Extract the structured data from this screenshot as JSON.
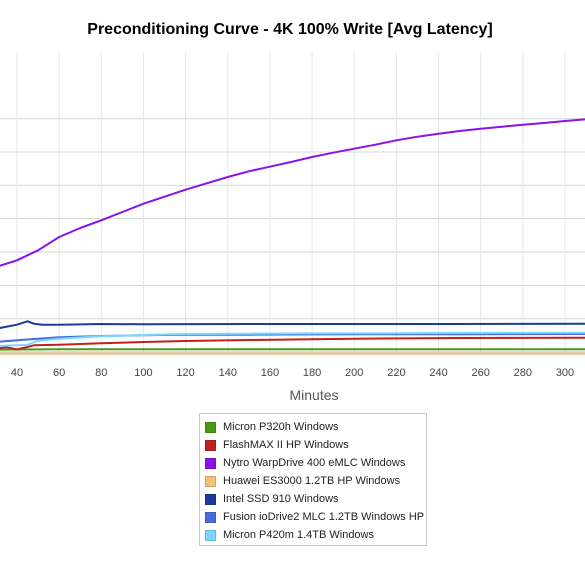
{
  "chart_data": {
    "type": "line",
    "title": "Preconditioning Curve - 4K 100% Write [Avg Latency]",
    "xlabel": "Minutes",
    "ylabel": "",
    "xlim": [
      30,
      310
    ],
    "ylim": [
      0,
      9
    ],
    "xticks": [
      40,
      60,
      80,
      100,
      120,
      140,
      160,
      180,
      200,
      220,
      240,
      260,
      280,
      300
    ],
    "grid": true,
    "legend_position": "bottom",
    "series": [
      {
        "name": "Micron P320h Windows",
        "color": "#4a9a12",
        "x": [
          30,
          60,
          100,
          150,
          200,
          250,
          310
        ],
        "y": [
          0.07,
          0.08,
          0.08,
          0.08,
          0.08,
          0.08,
          0.08
        ]
      },
      {
        "name": "FlashMAX II HP Windows",
        "color": "#c21f1f",
        "x": [
          30,
          35,
          40,
          45,
          48,
          60,
          80,
          100,
          120,
          150,
          180,
          200,
          250,
          310
        ],
        "y": [
          0.1,
          0.14,
          0.08,
          0.15,
          0.2,
          0.22,
          0.26,
          0.3,
          0.33,
          0.36,
          0.38,
          0.4,
          0.42,
          0.43
        ]
      },
      {
        "name": "Nytro WarpDrive 400 eMLC Windows",
        "color": "#8a12f0",
        "x": [
          30,
          40,
          50,
          60,
          70,
          80,
          90,
          100,
          110,
          120,
          130,
          140,
          150,
          160,
          170,
          180,
          190,
          200,
          210,
          220,
          230,
          240,
          250,
          260,
          270,
          280,
          290,
          300,
          310
        ],
        "y": [
          2.55,
          2.75,
          3.05,
          3.45,
          3.72,
          3.95,
          4.2,
          4.45,
          4.66,
          4.87,
          5.06,
          5.25,
          5.42,
          5.56,
          5.7,
          5.85,
          5.98,
          6.1,
          6.22,
          6.35,
          6.46,
          6.55,
          6.63,
          6.7,
          6.76,
          6.82,
          6.87,
          6.93,
          6.98
        ]
      },
      {
        "name": "Huawei ES3000 1.2TB HP Windows",
        "color": "#f2c07a",
        "x": [
          30,
          60,
          100,
          150,
          200,
          250,
          310
        ],
        "y": [
          -0.05,
          -0.05,
          -0.05,
          -0.05,
          -0.05,
          -0.05,
          -0.05
        ]
      },
      {
        "name": "Intel SSD 910 Windows",
        "color": "#1c3a9e",
        "x": [
          30,
          40,
          45,
          48,
          52,
          60,
          80,
          100,
          150,
          200,
          250,
          310
        ],
        "y": [
          0.7,
          0.82,
          0.92,
          0.85,
          0.82,
          0.82,
          0.84,
          0.83,
          0.84,
          0.84,
          0.84,
          0.85
        ]
      },
      {
        "name": "Fusion ioDrive2 MLC 1.2TB Windows HP",
        "color": "#4a6ae0",
        "x": [
          30,
          40,
          50,
          60,
          80,
          100,
          120,
          150,
          200,
          250,
          310
        ],
        "y": [
          0.3,
          0.35,
          0.4,
          0.44,
          0.48,
          0.5,
          0.52,
          0.52,
          0.53,
          0.53,
          0.54
        ]
      },
      {
        "name": "Micron P420m 1.4TB Windows",
        "color": "#78d8ff",
        "x": [
          30,
          40,
          45,
          50,
          60,
          80,
          100,
          120,
          150,
          200,
          250,
          310
        ],
        "y": [
          0.18,
          0.2,
          0.22,
          0.34,
          0.4,
          0.47,
          0.51,
          0.54,
          0.55,
          0.56,
          0.57,
          0.58
        ]
      }
    ]
  }
}
